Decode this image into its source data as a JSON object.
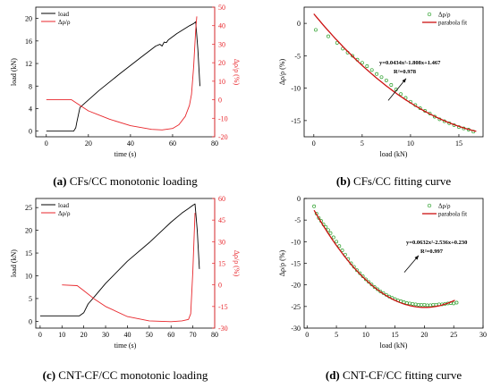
{
  "colors": {
    "load": "#000000",
    "resistance": "#e8262b",
    "points": "#2ca02c",
    "fit": "#cc1111"
  },
  "captions": [
    {
      "label": "(a)",
      "text": " CFs/CC monotonic loading"
    },
    {
      "label": "(b)",
      "text": " CFs/CC fitting curve"
    },
    {
      "label": "(c)",
      "text": " CNT-CF/CC monotonic loading"
    },
    {
      "label": "(d)",
      "text": " CNT-CF/CC fitting curve"
    }
  ],
  "chart_data": [
    {
      "id": "a",
      "type": "line",
      "xlabel": "time (s)",
      "ylabel": "load (kN)",
      "y2label": "Δρ/ρ (%)",
      "xlim": [
        -5,
        80
      ],
      "ylim": [
        -1,
        22
      ],
      "y2lim": [
        -20,
        50
      ],
      "xticks": [
        0,
        20,
        40,
        60,
        80
      ],
      "yticks": [
        0,
        4,
        8,
        12,
        16,
        20
      ],
      "y2ticks": [
        -20,
        -10,
        0,
        10,
        20,
        30,
        40,
        50
      ],
      "legend_position": "top-left",
      "series": [
        {
          "name": "load",
          "axis": "y1",
          "x": [
            0,
            13,
            14,
            14.5,
            16,
            25,
            35,
            45,
            52,
            54,
            55,
            56,
            57,
            58,
            62,
            68,
            70,
            71,
            72,
            73
          ],
          "y": [
            0,
            0,
            0.6,
            1.6,
            4.2,
            7.2,
            10.2,
            13.1,
            15.1,
            15.4,
            15.1,
            15.8,
            15.7,
            16.2,
            17.3,
            18.7,
            19.1,
            19.4,
            14.5,
            8
          ]
        },
        {
          "name": "Δρ/ρ",
          "axis": "y2",
          "x": [
            0,
            12,
            14,
            20,
            30,
            40,
            50,
            55,
            60,
            63,
            66,
            68,
            69,
            70,
            71,
            71.5
          ],
          "y": [
            0,
            0,
            -1.5,
            -6,
            -10.5,
            -14,
            -16,
            -16.3,
            -15.5,
            -13.5,
            -9,
            -3,
            3,
            18,
            38,
            45
          ]
        }
      ]
    },
    {
      "id": "b",
      "type": "scatter",
      "xlabel": "load (kN)",
      "ylabel": "Δρ/ρ (%)",
      "xlim": [
        -1,
        17.5
      ],
      "ylim": [
        -17.5,
        2.5
      ],
      "xticks": [
        0,
        5,
        10,
        15
      ],
      "yticks": [
        -15,
        -10,
        -5,
        0
      ],
      "legend_position": "top-right",
      "equation": "y=0.0434x²-1.808x+1.467",
      "r2": "R²=0.978",
      "series": [
        {
          "name": "Δρ/ρ",
          "kind": "points",
          "x": [
            0.2,
            1.5,
            2.4,
            3.0,
            3.5,
            4.0,
            4.5,
            5.0,
            5.5,
            6.0,
            6.5,
            7.0,
            7.5,
            8.0,
            8.5,
            9.0,
            9.5,
            10.0,
            10.5,
            11.0,
            11.5,
            12.0,
            12.5,
            13.0,
            13.5,
            14.0,
            14.5,
            15.0,
            15.5,
            16.0,
            16.5
          ],
          "y": [
            -1.0,
            -2.0,
            -3.0,
            -3.9,
            -4.5,
            -5.0,
            -5.6,
            -6.1,
            -6.6,
            -7.2,
            -7.8,
            -8.3,
            -8.8,
            -9.5,
            -10.2,
            -10.9,
            -11.5,
            -12.1,
            -12.6,
            -13.1,
            -13.5,
            -13.9,
            -14.4,
            -14.8,
            -15.1,
            -15.4,
            -15.7,
            -16.0,
            -16.2,
            -16.4,
            -16.7
          ]
        },
        {
          "name": "parabola fit",
          "kind": "curve",
          "coeffs": [
            0.0434,
            -1.808,
            1.467
          ],
          "xrange": [
            0,
            16.8
          ]
        }
      ]
    },
    {
      "id": "c",
      "type": "line",
      "xlabel": "time (s)",
      "ylabel": "load (kN)",
      "y2label": "Δρ/ρ (%)",
      "xlim": [
        -2,
        80
      ],
      "ylim": [
        -1.5,
        27
      ],
      "y2lim": [
        -30,
        60
      ],
      "xticks": [
        0,
        10,
        20,
        30,
        40,
        50,
        60,
        70,
        80
      ],
      "yticks": [
        0,
        5,
        10,
        15,
        20,
        25
      ],
      "y2ticks": [
        -30,
        -15,
        0,
        15,
        30,
        45,
        60
      ],
      "legend_position": "top-left",
      "series": [
        {
          "name": "load",
          "axis": "y1",
          "x": [
            0,
            18,
            20,
            22,
            25,
            30,
            40,
            50,
            60,
            65,
            68,
            70,
            71,
            72,
            73
          ],
          "y": [
            1.2,
            1.2,
            1.9,
            3.8,
            5.5,
            8.3,
            13.2,
            17.3,
            21.8,
            23.8,
            24.8,
            25.5,
            25.8,
            20,
            11.5
          ]
        },
        {
          "name": "Δρ/ρ",
          "axis": "y2",
          "x": [
            10,
            17,
            20,
            25,
            30,
            40,
            50,
            60,
            65,
            68,
            69,
            70,
            71
          ],
          "y": [
            0,
            -0.5,
            -4,
            -10,
            -15,
            -22,
            -25,
            -25.5,
            -25,
            -24,
            -20,
            10,
            50
          ]
        }
      ]
    },
    {
      "id": "d",
      "type": "scatter",
      "xlabel": "load (kN)",
      "ylabel": "Δρ/ρ (%)",
      "xlim": [
        -0.5,
        30
      ],
      "ylim": [
        -30,
        0
      ],
      "xticks": [
        0,
        5,
        10,
        15,
        20,
        25,
        30
      ],
      "yticks": [
        -30,
        -25,
        -20,
        -15,
        -10,
        -5,
        0
      ],
      "legend_position": "top-right",
      "equation": "y=0.0632x²-2.536x+0.230",
      "r2": "R²=0.997",
      "series": [
        {
          "name": "Δρ/ρ",
          "kind": "points",
          "x": [
            1.2,
            1.6,
            2.0,
            2.4,
            2.8,
            3.2,
            3.6,
            4.0,
            4.5,
            5.0,
            5.5,
            6.0,
            6.5,
            7.0,
            7.5,
            8.0,
            8.5,
            9.0,
            9.5,
            10.0,
            10.5,
            11.0,
            11.5,
            12.0,
            12.5,
            13.0,
            13.5,
            14.0,
            14.5,
            15.0,
            15.5,
            16.0,
            16.5,
            17.0,
            17.5,
            18.0,
            18.5,
            19.0,
            19.5,
            20.0,
            20.5,
            21.0,
            21.5,
            22.0,
            22.5,
            23.0,
            23.5,
            24.0,
            24.5,
            25.0,
            25.5
          ],
          "y": [
            -1.8,
            -3.5,
            -4.5,
            -5.2,
            -6.0,
            -6.6,
            -7.3,
            -8.0,
            -9.0,
            -10.0,
            -11.0,
            -12.0,
            -13.0,
            -14.0,
            -15.0,
            -15.8,
            -16.6,
            -17.3,
            -18.0,
            -18.7,
            -19.3,
            -19.9,
            -20.5,
            -21.0,
            -21.5,
            -21.9,
            -22.3,
            -22.7,
            -23.0,
            -23.3,
            -23.6,
            -23.8,
            -24.0,
            -24.2,
            -24.3,
            -24.4,
            -24.5,
            -24.6,
            -24.6,
            -24.6,
            -24.7,
            -24.7,
            -24.6,
            -24.6,
            -24.5,
            -24.5,
            -24.4,
            -24.3,
            -24.2,
            -24.3,
            -24.1
          ]
        },
        {
          "name": "parabola fit",
          "kind": "curve",
          "coeffs": [
            0.0632,
            -2.536,
            0.23
          ],
          "xrange": [
            1.2,
            25.2
          ]
        }
      ]
    }
  ]
}
